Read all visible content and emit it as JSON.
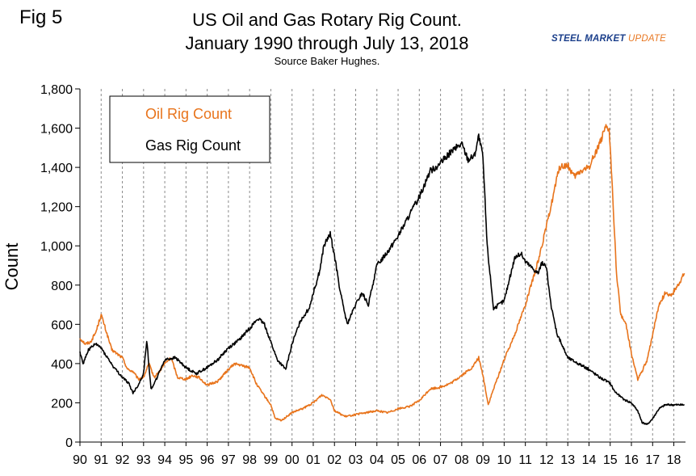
{
  "figure": {
    "label": "Fig 5",
    "title_line1": "US Oil and Gas Rotary Rig Count.",
    "title_line2": "January 1990 through July 13, 2018",
    "source": "Source Baker Hughes.",
    "logo_part1": "STEEL MARKET",
    "logo_part2": "UPDATE"
  },
  "chart_data": {
    "type": "line",
    "title": "US Oil and Gas Rotary Rig Count. January 1990 through July 13, 2018",
    "subtitle": "Source Baker Hughes.",
    "xlabel": "",
    "ylabel": "Count",
    "ylim": [
      0,
      1800
    ],
    "xlim": [
      1990,
      2018.55
    ],
    "yticks": [
      0,
      200,
      400,
      600,
      800,
      1000,
      1200,
      1400,
      1600,
      1800
    ],
    "ytick_labels": [
      "0",
      "200",
      "400",
      "600",
      "800",
      "1,000",
      "1,200",
      "1,400",
      "1,600",
      "1,800"
    ],
    "xtick_labels": [
      "90",
      "91",
      "92",
      "93",
      "94",
      "95",
      "96",
      "97",
      "98",
      "99",
      "00",
      "01",
      "02",
      "03",
      "04",
      "05",
      "06",
      "07",
      "08",
      "09",
      "10",
      "11",
      "12",
      "13",
      "14",
      "15",
      "16",
      "17",
      "18"
    ],
    "grid": "vertical dashed",
    "legend_position": "top-left",
    "colors": {
      "oil": "#e8741c",
      "gas": "#000000"
    },
    "series": [
      {
        "name": "Oil Rig Count",
        "color": "#e8741c",
        "x": [
          1990.0,
          1990.25,
          1990.5,
          1990.75,
          1991.0,
          1991.25,
          1991.5,
          1991.75,
          1992.0,
          1992.25,
          1992.5,
          1992.75,
          1993.0,
          1993.25,
          1993.5,
          1993.75,
          1994.0,
          1994.3,
          1994.6,
          1995.0,
          1995.3,
          1995.6,
          1996.0,
          1996.5,
          1997.0,
          1997.3,
          1997.6,
          1998.0,
          1998.3,
          1998.6,
          1999.0,
          1999.2,
          1999.5,
          2000.0,
          2000.5,
          2001.0,
          2001.4,
          2001.8,
          2002.0,
          2002.5,
          2003.0,
          2003.5,
          2004.0,
          2004.5,
          2005.0,
          2005.5,
          2006.0,
          2006.5,
          2007.0,
          2007.5,
          2008.0,
          2008.5,
          2008.8,
          2009.0,
          2009.25,
          2009.5,
          2010.0,
          2010.5,
          2011.0,
          2011.5,
          2012.0,
          2012.3,
          2012.6,
          2013.0,
          2013.3,
          2013.6,
          2014.0,
          2014.4,
          2014.8,
          2014.95,
          2015.1,
          2015.3,
          2015.5,
          2015.75,
          2016.0,
          2016.3,
          2016.5,
          2016.75,
          2017.0,
          2017.3,
          2017.6,
          2017.9,
          2018.2,
          2018.5
        ],
        "values": [
          530,
          500,
          510,
          560,
          650,
          560,
          470,
          450,
          430,
          370,
          360,
          320,
          330,
          400,
          330,
          360,
          400,
          430,
          330,
          320,
          340,
          330,
          290,
          310,
          370,
          400,
          390,
          380,
          300,
          250,
          190,
          120,
          110,
          150,
          170,
          200,
          240,
          220,
          160,
          130,
          140,
          150,
          160,
          150,
          170,
          180,
          210,
          270,
          280,
          300,
          340,
          380,
          430,
          340,
          190,
          270,
          420,
          550,
          700,
          880,
          1100,
          1250,
          1400,
          1410,
          1350,
          1380,
          1400,
          1500,
          1600,
          1590,
          1300,
          850,
          650,
          600,
          450,
          320,
          360,
          420,
          550,
          700,
          760,
          750,
          800,
          860
        ]
      },
      {
        "name": "Gas Rig Count",
        "color": "#000000",
        "x": [
          1990.0,
          1990.15,
          1990.4,
          1990.75,
          1991.0,
          1991.3,
          1991.6,
          1992.0,
          1992.3,
          1992.5,
          1992.75,
          1993.0,
          1993.15,
          1993.35,
          1993.6,
          1994.0,
          1994.5,
          1994.8,
          1995.0,
          1995.3,
          1995.5,
          1996.0,
          1996.5,
          1997.0,
          1997.5,
          1998.0,
          1998.4,
          1998.7,
          1999.0,
          1999.3,
          1999.7,
          2000.0,
          2000.4,
          2000.8,
          2001.0,
          2001.3,
          2001.5,
          2001.8,
          2002.0,
          2002.3,
          2002.6,
          2003.0,
          2003.3,
          2003.6,
          2004.0,
          2004.5,
          2005.0,
          2005.5,
          2006.0,
          2006.5,
          2007.0,
          2007.5,
          2008.0,
          2008.3,
          2008.6,
          2008.8,
          2009.0,
          2009.2,
          2009.5,
          2010.0,
          2010.5,
          2010.8,
          2011.0,
          2011.3,
          2011.6,
          2011.8,
          2012.0,
          2012.2,
          2012.5,
          2013.0,
          2013.5,
          2014.0,
          2014.5,
          2015.0,
          2015.2,
          2015.6,
          2016.0,
          2016.3,
          2016.5,
          2016.75,
          2017.0,
          2017.3,
          2017.6,
          2018.0,
          2018.5
        ],
        "values": [
          460,
          400,
          470,
          500,
          480,
          430,
          380,
          330,
          300,
          250,
          290,
          350,
          520,
          270,
          320,
          420,
          430,
          400,
          380,
          360,
          350,
          380,
          420,
          480,
          520,
          580,
          630,
          600,
          510,
          420,
          370,
          500,
          620,
          680,
          760,
          870,
          1000,
          1060,
          950,
          750,
          600,
          700,
          760,
          700,
          900,
          970,
          1050,
          1150,
          1250,
          1380,
          1420,
          1480,
          1520,
          1440,
          1460,
          1560,
          1450,
          1000,
          680,
          720,
          940,
          960,
          920,
          890,
          860,
          920,
          880,
          700,
          550,
          430,
          400,
          370,
          330,
          300,
          260,
          220,
          200,
          160,
          100,
          90,
          120,
          170,
          190,
          190,
          190
        ]
      }
    ]
  }
}
